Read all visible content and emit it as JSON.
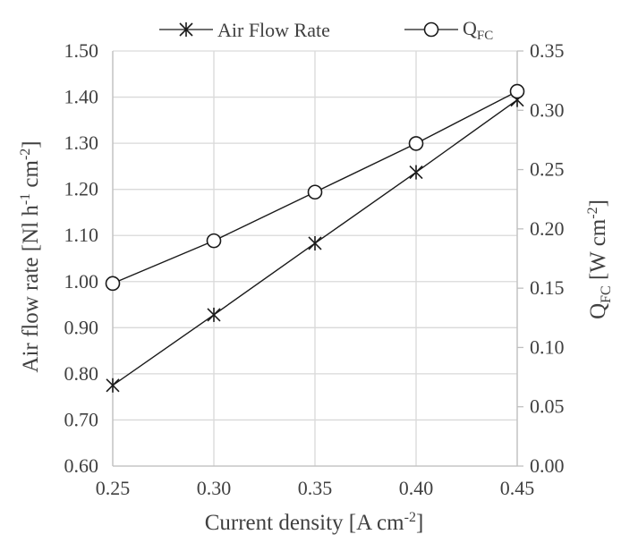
{
  "chart_data": {
    "type": "line",
    "x": [
      0.25,
      0.3,
      0.35,
      0.4,
      0.45
    ],
    "x_tick_labels": [
      "0.25",
      "0.30",
      "0.35",
      "0.40",
      "0.45"
    ],
    "xlim": [
      0.25,
      0.45
    ],
    "xlabel": {
      "base": "Current density [A cm",
      "sup": "-2",
      "tail": "]"
    },
    "y_left": {
      "lim": [
        0.6,
        1.5
      ],
      "tick_labels": [
        "0.60",
        "0.70",
        "0.80",
        "0.90",
        "1.00",
        "1.10",
        "1.20",
        "1.30",
        "1.40",
        "1.50"
      ],
      "label": {
        "p1": "Air flow rate [Nl h",
        "sup1": "-1",
        "p2": " cm",
        "sup2": "-2",
        "p3": "]"
      }
    },
    "y_right": {
      "lim": [
        0.0,
        0.35
      ],
      "tick_labels": [
        "0.00",
        "0.05",
        "0.10",
        "0.15",
        "0.20",
        "0.25",
        "0.30",
        "0.35"
      ],
      "label": {
        "main": "Q",
        "sub": "FC",
        "p2": "  [W cm",
        "sup": "-2",
        "p3": "]"
      }
    },
    "grid": true,
    "legend_position": "top",
    "series": [
      {
        "name": "Air Flow Rate",
        "axis": "left",
        "marker": "asterisk",
        "values": [
          0.775,
          0.928,
          1.083,
          1.237,
          1.394
        ]
      },
      {
        "name_main": "Q",
        "name_sub": "FC",
        "axis": "right",
        "marker": "open-circle",
        "values": [
          0.154,
          0.19,
          0.231,
          0.272,
          0.316
        ]
      }
    ],
    "colors": {
      "line": "#1a1a1a",
      "grid": "#d9d9d9",
      "axis": "#bfbfbf",
      "text": "#404040"
    }
  }
}
